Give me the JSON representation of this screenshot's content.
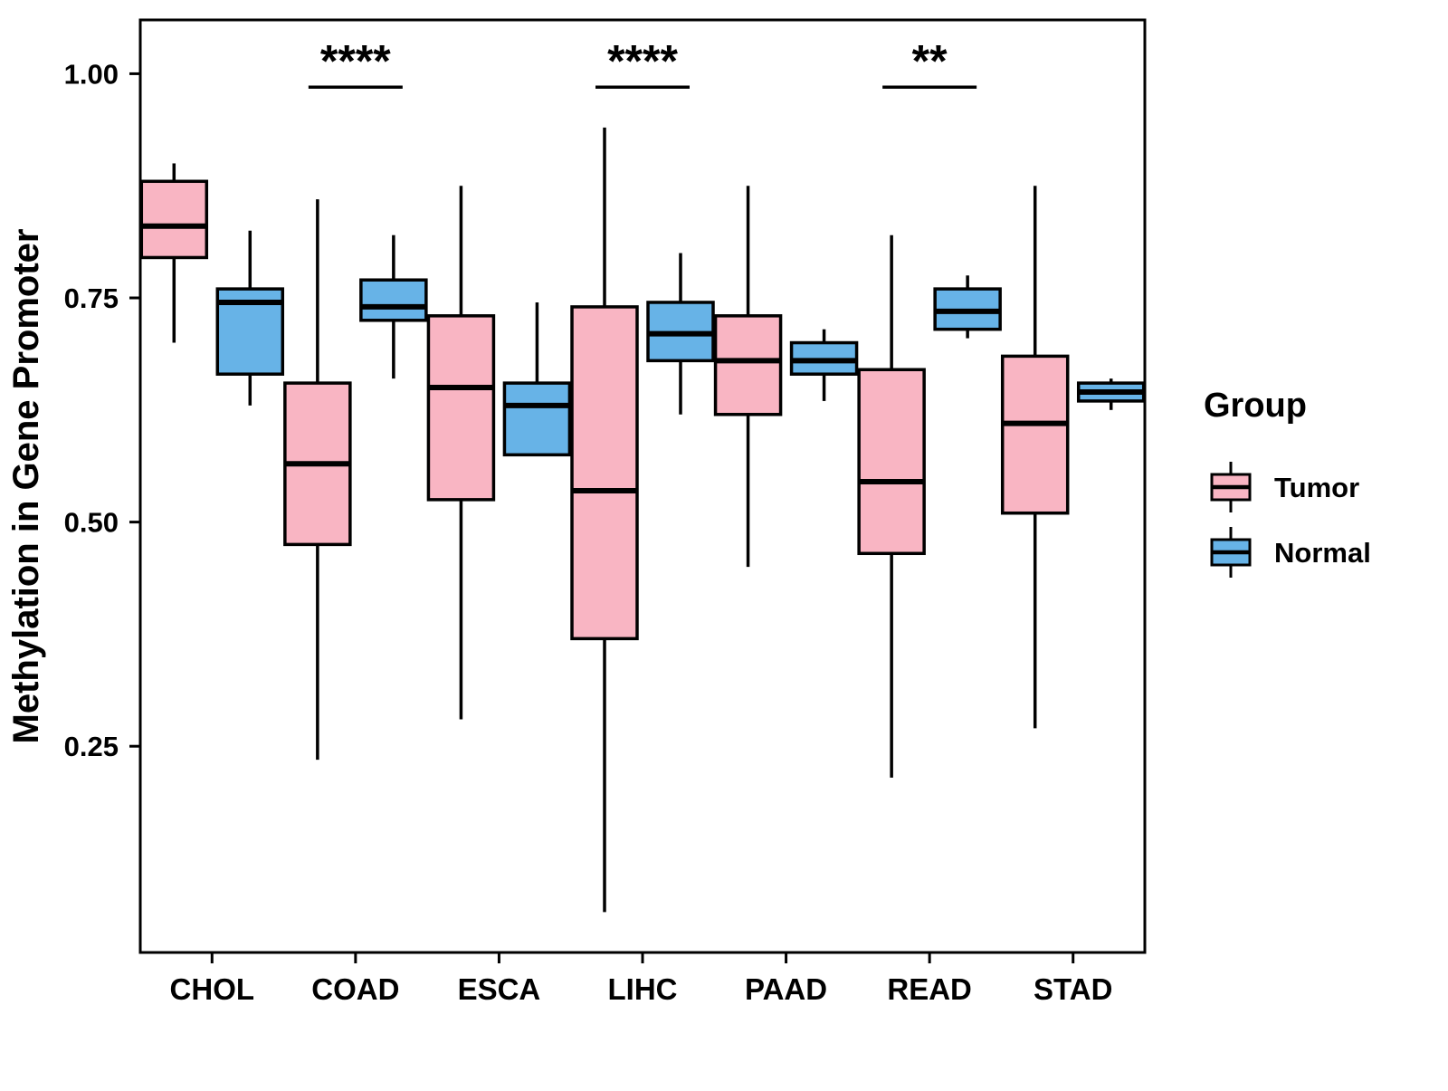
{
  "figure": {
    "background": "#ffffff"
  },
  "chart_data": {
    "type": "boxplot",
    "title": "",
    "xlabel": "",
    "ylabel": "Methylation in Gene Promoter",
    "ylim": [
      0.02,
      1.06
    ],
    "yticks": [
      0.25,
      0.5,
      0.75,
      1.0
    ],
    "ytick_labels": [
      "0.25",
      "0.50",
      "0.75",
      "1.00"
    ],
    "grid": false,
    "panel_border_color": "#000000",
    "line_color": "#000000",
    "legend": {
      "title": "Group",
      "position": "right",
      "entries": [
        {
          "label": "Tumor",
          "color": "#F9B5C3"
        },
        {
          "label": "Normal",
          "color": "#67B3E7"
        }
      ]
    },
    "categories": [
      "CHOL",
      "COAD",
      "ESCA",
      "LIHC",
      "PAAD",
      "READ",
      "STAD"
    ],
    "series": [
      {
        "name": "Tumor",
        "color": "#F9B5C3",
        "boxes": [
          {
            "low": 0.7,
            "q1": 0.795,
            "median": 0.83,
            "q3": 0.88,
            "high": 0.9
          },
          {
            "low": 0.235,
            "q1": 0.475,
            "median": 0.565,
            "q3": 0.655,
            "high": 0.86
          },
          {
            "low": 0.28,
            "q1": 0.525,
            "median": 0.65,
            "q3": 0.73,
            "high": 0.875
          },
          {
            "low": 0.065,
            "q1": 0.37,
            "median": 0.535,
            "q3": 0.74,
            "high": 0.94
          },
          {
            "low": 0.45,
            "q1": 0.62,
            "median": 0.68,
            "q3": 0.73,
            "high": 0.875
          },
          {
            "low": 0.215,
            "q1": 0.465,
            "median": 0.545,
            "q3": 0.67,
            "high": 0.82
          },
          {
            "low": 0.27,
            "q1": 0.51,
            "median": 0.61,
            "q3": 0.685,
            "high": 0.875
          }
        ]
      },
      {
        "name": "Normal",
        "color": "#67B3E7",
        "boxes": [
          {
            "low": 0.63,
            "q1": 0.665,
            "median": 0.745,
            "q3": 0.76,
            "high": 0.825
          },
          {
            "low": 0.66,
            "q1": 0.725,
            "median": 0.74,
            "q3": 0.77,
            "high": 0.82
          },
          {
            "low": 0.575,
            "q1": 0.575,
            "median": 0.63,
            "q3": 0.655,
            "high": 0.745
          },
          {
            "low": 0.62,
            "q1": 0.68,
            "median": 0.71,
            "q3": 0.745,
            "high": 0.8
          },
          {
            "low": 0.635,
            "q1": 0.665,
            "median": 0.68,
            "q3": 0.7,
            "high": 0.715
          },
          {
            "low": 0.705,
            "q1": 0.715,
            "median": 0.735,
            "q3": 0.76,
            "high": 0.775
          },
          {
            "low": 0.625,
            "q1": 0.635,
            "median": 0.645,
            "q3": 0.655,
            "high": 0.66
          }
        ]
      }
    ],
    "significance": [
      {
        "category": "COAD",
        "label": "****",
        "y": 0.985
      },
      {
        "category": "LIHC",
        "label": "****",
        "y": 0.985
      },
      {
        "category": "READ",
        "label": "**",
        "y": 0.985
      }
    ]
  }
}
